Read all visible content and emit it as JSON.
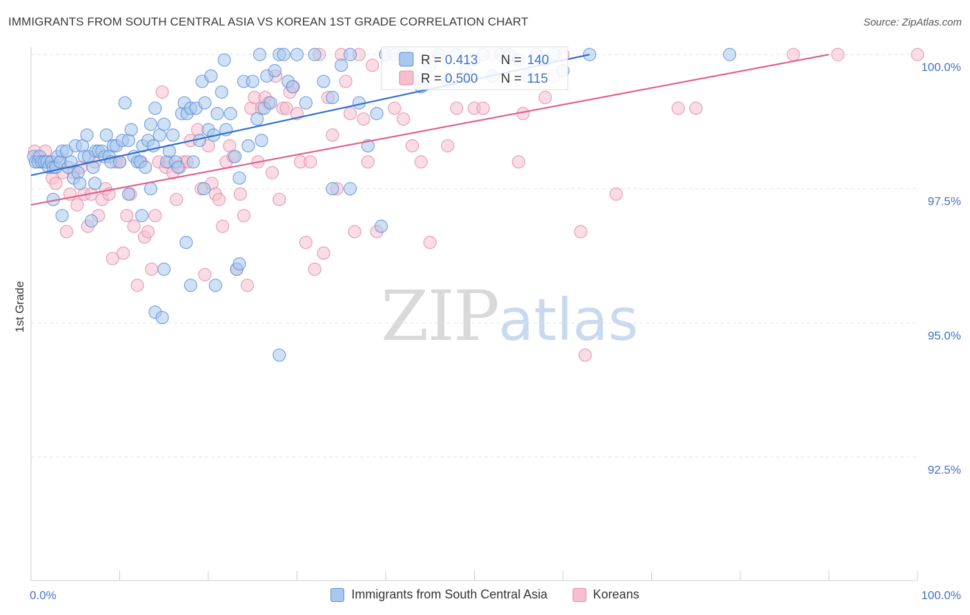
{
  "title": "IMMIGRANTS FROM SOUTH CENTRAL ASIA VS KOREAN 1ST GRADE CORRELATION CHART",
  "source": "Source: ZipAtlas.com",
  "watermark": {
    "zip": "ZIP",
    "atlas": "atlas"
  },
  "colors": {
    "blue_fill": "#aac8ef",
    "blue_stroke": "#5b8fd6",
    "blue_line": "#2e6fcd",
    "pink_fill": "#f5bfd0",
    "pink_stroke": "#e58aa8",
    "pink_line": "#e0608c",
    "axis_text": "#4472c4",
    "grid": "#e2e2e2"
  },
  "legend": {
    "r_label": "R =",
    "n_label": "N =",
    "rows": [
      {
        "series": "blue",
        "r": "0.413",
        "n": "140"
      },
      {
        "series": "pink",
        "r": "0.500",
        "n": "115"
      }
    ]
  },
  "bottom_legend": [
    {
      "series": "blue",
      "label": "Immigrants from South Central Asia"
    },
    {
      "series": "pink",
      "label": "Koreans"
    }
  ],
  "chart_data": {
    "type": "scatter",
    "xlabel": "",
    "ylabel": "1st Grade",
    "xlim": [
      0,
      100
    ],
    "ylim": [
      90.2,
      100.4
    ],
    "x_tick_labels": [
      "0.0%",
      "100.0%"
    ],
    "y_ticks": [
      {
        "value": 100.0,
        "label": "100.0%"
      },
      {
        "value": 97.5,
        "label": "97.5%"
      },
      {
        "value": 95.0,
        "label": "95.0%"
      },
      {
        "value": 92.5,
        "label": "92.5%"
      }
    ],
    "series": [
      {
        "name": "Immigrants from South Central Asia",
        "key": "blue",
        "trend": {
          "x": [
            0,
            63
          ],
          "y": [
            97.75,
            100.0
          ]
        },
        "points": [
          [
            0.3,
            98.1
          ],
          [
            0.5,
            98.0
          ],
          [
            0.8,
            98.0
          ],
          [
            1.0,
            98.1
          ],
          [
            1.2,
            98.0
          ],
          [
            1.5,
            98.0
          ],
          [
            1.8,
            98.0
          ],
          [
            2.0,
            97.9
          ],
          [
            2.3,
            98.0
          ],
          [
            2.5,
            97.9
          ],
          [
            2.8,
            97.9
          ],
          [
            3.0,
            98.1
          ],
          [
            3.3,
            98.0
          ],
          [
            3.5,
            98.2
          ],
          [
            4.0,
            98.2
          ],
          [
            4.2,
            97.9
          ],
          [
            4.5,
            98.0
          ],
          [
            4.8,
            97.7
          ],
          [
            5.0,
            98.3
          ],
          [
            5.3,
            97.8
          ],
          [
            5.5,
            97.6
          ],
          [
            5.8,
            98.3
          ],
          [
            6.0,
            98.1
          ],
          [
            6.3,
            98.5
          ],
          [
            6.5,
            98.1
          ],
          [
            7.0,
            97.9
          ],
          [
            7.3,
            98.2
          ],
          [
            7.6,
            98.2
          ],
          [
            8.0,
            98.2
          ],
          [
            8.3,
            98.1
          ],
          [
            8.5,
            98.5
          ],
          [
            8.8,
            98.1
          ],
          [
            9.0,
            98.0
          ],
          [
            9.3,
            98.3
          ],
          [
            9.6,
            98.3
          ],
          [
            10.0,
            98.0
          ],
          [
            10.3,
            98.4
          ],
          [
            10.6,
            99.1
          ],
          [
            11.0,
            98.4
          ],
          [
            11.3,
            98.6
          ],
          [
            11.6,
            98.1
          ],
          [
            12.0,
            98.0
          ],
          [
            12.3,
            98.0
          ],
          [
            12.6,
            98.3
          ],
          [
            12.9,
            97.9
          ],
          [
            13.2,
            98.4
          ],
          [
            13.5,
            98.7
          ],
          [
            13.8,
            98.3
          ],
          [
            14.0,
            99.0
          ],
          [
            14.5,
            98.5
          ],
          [
            15.0,
            98.7
          ],
          [
            15.3,
            98.0
          ],
          [
            15.6,
            98.2
          ],
          [
            16.0,
            98.5
          ],
          [
            16.3,
            98.0
          ],
          [
            16.6,
            97.9
          ],
          [
            17.0,
            98.9
          ],
          [
            17.3,
            99.1
          ],
          [
            17.6,
            98.9
          ],
          [
            18.0,
            99.0
          ],
          [
            18.3,
            98.0
          ],
          [
            18.6,
            99.0
          ],
          [
            19.0,
            98.4
          ],
          [
            19.3,
            99.5
          ],
          [
            19.6,
            99.1
          ],
          [
            20.0,
            98.6
          ],
          [
            20.3,
            99.6
          ],
          [
            20.6,
            98.5
          ],
          [
            21.0,
            98.9
          ],
          [
            21.5,
            99.3
          ],
          [
            21.8,
            99.9
          ],
          [
            22.0,
            98.6
          ],
          [
            22.5,
            98.9
          ],
          [
            23.0,
            98.1
          ],
          [
            23.5,
            97.7
          ],
          [
            24.0,
            99.5
          ],
          [
            24.5,
            98.3
          ],
          [
            25.0,
            99.5
          ],
          [
            25.5,
            98.8
          ],
          [
            25.8,
            100.0
          ],
          [
            26.0,
            98.4
          ],
          [
            26.3,
            99.0
          ],
          [
            26.6,
            99.6
          ],
          [
            27.0,
            99.1
          ],
          [
            27.5,
            99.7
          ],
          [
            28.0,
            100.0
          ],
          [
            28.5,
            100.0
          ],
          [
            29.0,
            99.5
          ],
          [
            29.5,
            99.4
          ],
          [
            30.0,
            100.0
          ],
          [
            31.0,
            99.1
          ],
          [
            32.0,
            100.0
          ],
          [
            33.0,
            99.5
          ],
          [
            34.0,
            99.2
          ],
          [
            35.0,
            99.8
          ],
          [
            36.0,
            100.0
          ],
          [
            37.0,
            99.1
          ],
          [
            38.0,
            98.3
          ],
          [
            39.0,
            98.9
          ],
          [
            40.0,
            100.0
          ],
          [
            41.0,
            100.0
          ],
          [
            42.0,
            100.0
          ],
          [
            43.0,
            99.6
          ],
          [
            44.0,
            99.4
          ],
          [
            45.0,
            99.8
          ],
          [
            46.0,
            100.0
          ],
          [
            47.0,
            99.5
          ],
          [
            48.0,
            100.0
          ],
          [
            49.0,
            99.7
          ],
          [
            50.0,
            99.9
          ],
          [
            51.0,
            100.0
          ],
          [
            52.0,
            99.6
          ],
          [
            53.0,
            100.0
          ],
          [
            54.0,
            100.0
          ],
          [
            55.0,
            99.9
          ],
          [
            56.0,
            99.6
          ],
          [
            57.0,
            100.0
          ],
          [
            58.0,
            99.9
          ],
          [
            59.0,
            100.0
          ],
          [
            60.0,
            99.7
          ],
          [
            63.0,
            100.0
          ],
          [
            78.8,
            100.0
          ],
          [
            2.5,
            97.3
          ],
          [
            3.5,
            97.0
          ],
          [
            6.8,
            96.9
          ],
          [
            7.2,
            97.6
          ],
          [
            11.0,
            97.4
          ],
          [
            12.5,
            97.0
          ],
          [
            13.5,
            97.5
          ],
          [
            15.0,
            96.0
          ],
          [
            17.5,
            96.5
          ],
          [
            18.0,
            95.7
          ],
          [
            14.0,
            95.2
          ],
          [
            14.8,
            95.1
          ],
          [
            19.5,
            97.5
          ],
          [
            20.8,
            95.7
          ],
          [
            23.2,
            96.0
          ],
          [
            23.5,
            96.1
          ],
          [
            28.0,
            94.4
          ],
          [
            34.0,
            97.5
          ],
          [
            36.0,
            97.5
          ],
          [
            39.5,
            96.8
          ]
        ]
      },
      {
        "name": "Koreans",
        "key": "pink",
        "trend": {
          "x": [
            0,
            90
          ],
          "y": [
            97.2,
            100.0
          ]
        },
        "points": [
          [
            0.4,
            98.2
          ],
          [
            0.8,
            98.1
          ],
          [
            1.2,
            98.0
          ],
          [
            1.6,
            98.2
          ],
          [
            2.0,
            98.0
          ],
          [
            2.4,
            97.7
          ],
          [
            2.8,
            97.6
          ],
          [
            3.2,
            98.0
          ],
          [
            3.6,
            97.8
          ],
          [
            4.0,
            96.7
          ],
          [
            4.4,
            97.4
          ],
          [
            4.8,
            97.8
          ],
          [
            5.2,
            97.2
          ],
          [
            5.6,
            97.9
          ],
          [
            6.0,
            97.4
          ],
          [
            6.4,
            96.8
          ],
          [
            6.8,
            97.4
          ],
          [
            7.2,
            98.0
          ],
          [
            7.6,
            97.0
          ],
          [
            8.0,
            97.3
          ],
          [
            8.4,
            97.5
          ],
          [
            8.8,
            97.4
          ],
          [
            9.2,
            96.2
          ],
          [
            9.6,
            98.0
          ],
          [
            10.0,
            98.0
          ],
          [
            10.4,
            96.3
          ],
          [
            10.8,
            97.0
          ],
          [
            11.2,
            97.4
          ],
          [
            11.6,
            96.8
          ],
          [
            12.0,
            95.7
          ],
          [
            12.4,
            98.0
          ],
          [
            12.8,
            96.6
          ],
          [
            13.2,
            96.7
          ],
          [
            13.6,
            96.0
          ],
          [
            14.0,
            97.0
          ],
          [
            14.4,
            98.0
          ],
          [
            14.8,
            99.3
          ],
          [
            15.2,
            97.9
          ],
          [
            15.6,
            98.0
          ],
          [
            16.0,
            97.8
          ],
          [
            16.4,
            97.3
          ],
          [
            16.8,
            97.9
          ],
          [
            17.2,
            98.0
          ],
          [
            17.6,
            98.0
          ],
          [
            18.0,
            98.4
          ],
          [
            18.8,
            98.6
          ],
          [
            19.2,
            97.5
          ],
          [
            19.6,
            95.9
          ],
          [
            20.0,
            98.3
          ],
          [
            20.4,
            97.6
          ],
          [
            20.8,
            97.4
          ],
          [
            21.2,
            97.3
          ],
          [
            21.6,
            96.8
          ],
          [
            22.0,
            98.0
          ],
          [
            22.4,
            98.3
          ],
          [
            22.8,
            98.1
          ],
          [
            23.2,
            96.0
          ],
          [
            23.6,
            97.4
          ],
          [
            24.0,
            97.0
          ],
          [
            24.4,
            95.7
          ],
          [
            24.8,
            99.0
          ],
          [
            25.2,
            99.2
          ],
          [
            25.6,
            98.0
          ],
          [
            26.0,
            99.0
          ],
          [
            26.4,
            99.2
          ],
          [
            26.8,
            99.1
          ],
          [
            27.2,
            97.8
          ],
          [
            27.6,
            99.6
          ],
          [
            28.0,
            97.3
          ],
          [
            28.4,
            99.0
          ],
          [
            28.8,
            99.0
          ],
          [
            29.2,
            99.3
          ],
          [
            29.6,
            99.4
          ],
          [
            30.0,
            98.9
          ],
          [
            30.4,
            98.0
          ],
          [
            31.0,
            96.5
          ],
          [
            31.5,
            98.0
          ],
          [
            32.0,
            96.0
          ],
          [
            32.5,
            100.0
          ],
          [
            33.0,
            96.3
          ],
          [
            33.5,
            99.2
          ],
          [
            34.0,
            98.5
          ],
          [
            34.5,
            97.5
          ],
          [
            35.0,
            100.0
          ],
          [
            35.5,
            99.5
          ],
          [
            36.0,
            98.9
          ],
          [
            36.5,
            96.7
          ],
          [
            37.0,
            100.0
          ],
          [
            37.5,
            98.8
          ],
          [
            38.0,
            98.0
          ],
          [
            38.5,
            99.8
          ],
          [
            39.0,
            96.7
          ],
          [
            40.0,
            100.0
          ],
          [
            41.0,
            99.0
          ],
          [
            42.0,
            98.8
          ],
          [
            43.0,
            98.3
          ],
          [
            44.0,
            98.0
          ],
          [
            45.0,
            96.5
          ],
          [
            46.0,
            100.0
          ],
          [
            47.0,
            98.3
          ],
          [
            48.0,
            99.0
          ],
          [
            50.0,
            99.0
          ],
          [
            51.0,
            99.0
          ],
          [
            52.0,
            100.0
          ],
          [
            55.0,
            98.0
          ],
          [
            55.5,
            98.9
          ],
          [
            58.0,
            99.2
          ],
          [
            59.0,
            99.6
          ],
          [
            60.0,
            100.0
          ],
          [
            62.0,
            96.7
          ],
          [
            62.5,
            94.4
          ],
          [
            66.0,
            97.4
          ],
          [
            73.0,
            99.0
          ],
          [
            75.0,
            99.0
          ],
          [
            86.0,
            100.0
          ],
          [
            91.0,
            100.0
          ],
          [
            100.0,
            100.0
          ]
        ]
      }
    ]
  }
}
